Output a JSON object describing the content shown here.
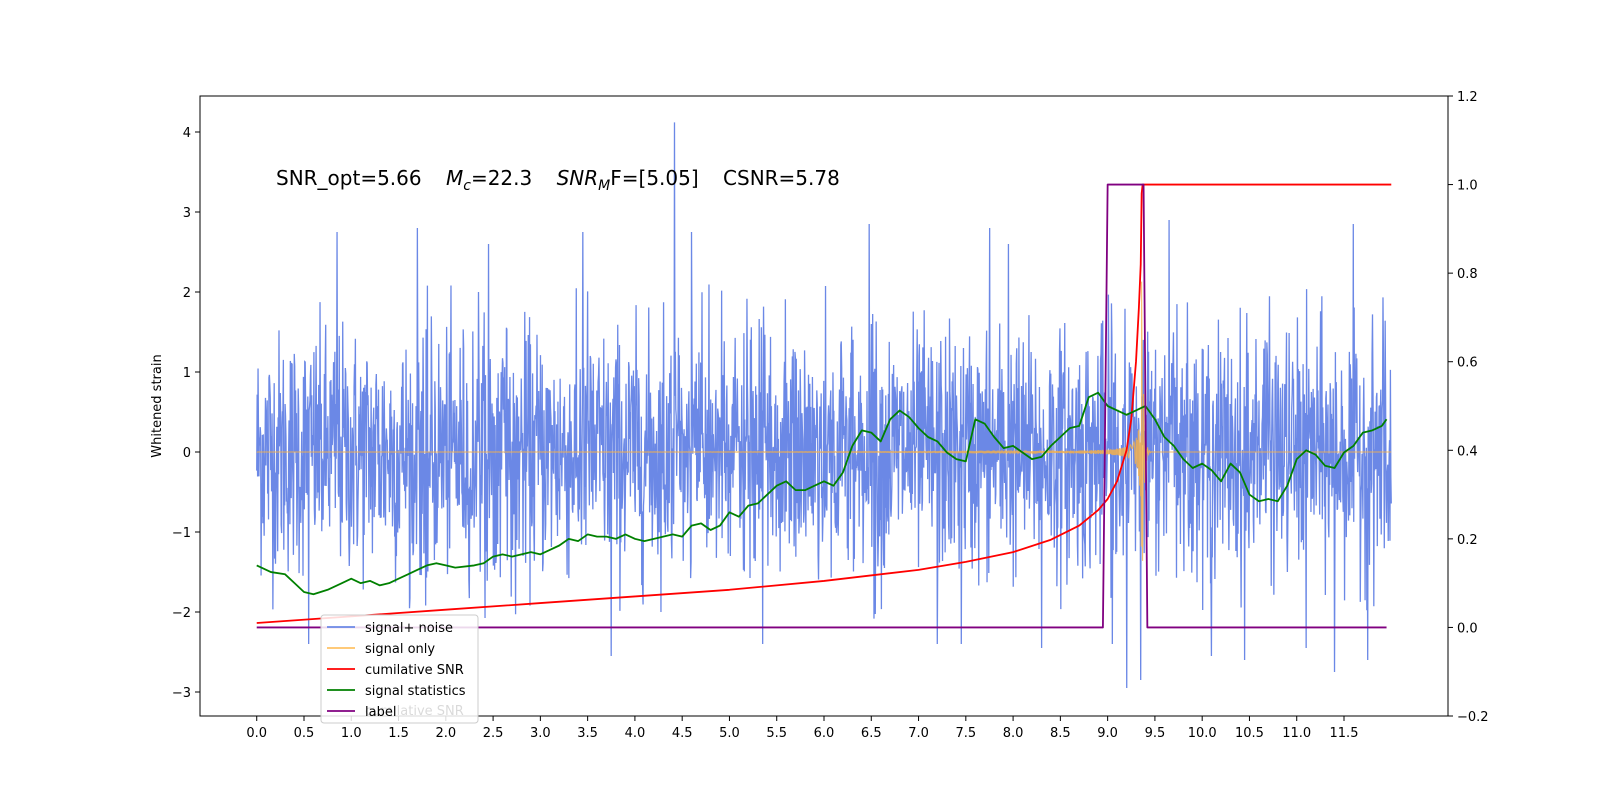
{
  "chart_data": {
    "type": "line",
    "ylabel": "Whitened strain",
    "annotation": {
      "parts": [
        "SNR_opt=5.66",
        "M",
        "c",
        "=22.3",
        "SNR",
        "M",
        "F=[5.05]",
        "CSNR=5.78"
      ]
    },
    "xlim": [
      -0.6,
      12.6
    ],
    "ylim_left": [
      -3.3,
      4.45
    ],
    "ylim_right": [
      -0.2,
      1.2
    ],
    "x_ticks": [
      0.0,
      0.5,
      1.0,
      1.5,
      2.0,
      2.5,
      3.0,
      3.5,
      4.0,
      4.5,
      5.0,
      5.5,
      6.0,
      6.5,
      7.0,
      7.5,
      8.0,
      8.5,
      9.0,
      9.5,
      10.0,
      10.5,
      11.0,
      11.5
    ],
    "x_tick_labels": [
      "0.0",
      "0.5",
      "1.0",
      "1.5",
      "2.0",
      "2.5",
      "3.0",
      "3.5",
      "4.0",
      "4.5",
      "5.0",
      "5.5",
      "6.0",
      "6.5",
      "7.0",
      "7.5",
      "8.0",
      "8.5",
      "9.0",
      "9.5",
      "10.0",
      "10.5",
      "11.0",
      "11.5"
    ],
    "y_left_ticks": [
      -3,
      -2,
      -1,
      0,
      1,
      2,
      3,
      4
    ],
    "y_left_tick_labels": [
      "−3",
      "−2",
      "−1",
      "0",
      "1",
      "2",
      "3",
      "4"
    ],
    "y_right_ticks": [
      -0.2,
      0.0,
      0.2,
      0.4,
      0.6,
      0.8,
      1.0,
      1.2
    ],
    "y_right_tick_labels": [
      "−0.2",
      "0.0",
      "0.2",
      "0.4",
      "0.6",
      "0.8",
      "1.0",
      "1.2"
    ],
    "legend": {
      "placement": "lower-left",
      "entries": [
        {
          "label": "signal+ noise",
          "color": "#6b88e6"
        },
        {
          "label": "signal only",
          "color": "#ffc266"
        },
        {
          "label": "cumilative SNR",
          "color": "#ff0000"
        },
        {
          "label": "signal statistics",
          "color": "#008000"
        },
        {
          "label": "label",
          "color": "#800080"
        }
      ],
      "ghost_label": "cumilative SNR"
    },
    "series": [
      {
        "name": "signal+ noise",
        "axis": "left",
        "color": "#6b88e6",
        "x_range": [
          0.0,
          12.0
        ],
        "noise_std": 0.75,
        "spikes": [
          [
            0.55,
            -2.4
          ],
          [
            0.85,
            2.75
          ],
          [
            1.7,
            2.8
          ],
          [
            2.45,
            2.6
          ],
          [
            3.45,
            2.75
          ],
          [
            3.75,
            3.0
          ],
          [
            3.75,
            -2.55
          ],
          [
            4.42,
            4.12
          ],
          [
            4.6,
            2.75
          ],
          [
            5.35,
            -2.4
          ],
          [
            6.48,
            2.85
          ],
          [
            7.2,
            -2.4
          ],
          [
            7.45,
            -2.4
          ],
          [
            7.75,
            2.8
          ],
          [
            7.95,
            2.6
          ],
          [
            8.3,
            -2.45
          ],
          [
            9.05,
            -2.4
          ],
          [
            9.2,
            -2.95
          ],
          [
            9.35,
            -2.85
          ],
          [
            9.65,
            2.9
          ],
          [
            10.1,
            -2.55
          ],
          [
            10.45,
            -2.6
          ],
          [
            11.1,
            -2.45
          ],
          [
            11.4,
            -2.75
          ],
          [
            11.6,
            2.85
          ],
          [
            11.75,
            -2.6
          ]
        ]
      },
      {
        "name": "signal only",
        "axis": "left",
        "color": "#f5b04a",
        "x_range": [
          0.0,
          12.0
        ],
        "chirp_end": 9.36,
        "peak": 2.5
      },
      {
        "name": "cumilative SNR",
        "axis": "right",
        "color": "#ff0000",
        "x": [
          0.0,
          1.0,
          2.0,
          3.0,
          4.0,
          5.0,
          6.0,
          7.0,
          7.5,
          8.0,
          8.4,
          8.7,
          8.9,
          9.0,
          9.1,
          9.2,
          9.25,
          9.3,
          9.33,
          9.35,
          9.36,
          9.37,
          9.38,
          12.0
        ],
        "y": [
          0.01,
          0.025,
          0.04,
          0.055,
          0.07,
          0.085,
          0.105,
          0.13,
          0.148,
          0.17,
          0.198,
          0.23,
          0.265,
          0.29,
          0.33,
          0.4,
          0.47,
          0.6,
          0.72,
          0.82,
          0.98,
          1.0,
          1.0,
          1.0
        ]
      },
      {
        "name": "signal statistics",
        "axis": "right",
        "color": "#008000",
        "x": [
          0.0,
          0.15,
          0.3,
          0.4,
          0.5,
          0.6,
          0.75,
          0.9,
          1.0,
          1.1,
          1.2,
          1.3,
          1.4,
          1.5,
          1.6,
          1.7,
          1.8,
          1.9,
          2.0,
          2.1,
          2.3,
          2.4,
          2.5,
          2.6,
          2.7,
          2.8,
          2.9,
          3.0,
          3.1,
          3.2,
          3.3,
          3.4,
          3.5,
          3.6,
          3.7,
          3.8,
          3.9,
          4.0,
          4.1,
          4.2,
          4.3,
          4.4,
          4.5,
          4.6,
          4.7,
          4.8,
          4.9,
          5.0,
          5.1,
          5.2,
          5.3,
          5.4,
          5.5,
          5.6,
          5.7,
          5.8,
          5.9,
          6.0,
          6.1,
          6.2,
          6.3,
          6.4,
          6.5,
          6.6,
          6.7,
          6.8,
          6.9,
          7.0,
          7.1,
          7.2,
          7.3,
          7.4,
          7.5,
          7.6,
          7.7,
          7.8,
          7.9,
          8.0,
          8.1,
          8.2,
          8.3,
          8.4,
          8.5,
          8.6,
          8.7,
          8.8,
          8.9,
          9.0,
          9.1,
          9.2,
          9.3,
          9.4,
          9.5,
          9.6,
          9.7,
          9.8,
          9.9,
          10.0,
          10.1,
          10.2,
          10.3,
          10.4,
          10.5,
          10.6,
          10.7,
          10.8,
          10.9,
          11.0,
          11.1,
          11.2,
          11.3,
          11.4,
          11.5,
          11.6,
          11.7,
          11.8,
          11.9,
          11.95
        ],
        "y": [
          0.14,
          0.125,
          0.12,
          0.1,
          0.08,
          0.075,
          0.085,
          0.1,
          0.11,
          0.1,
          0.105,
          0.095,
          0.1,
          0.11,
          0.12,
          0.13,
          0.14,
          0.145,
          0.14,
          0.135,
          0.14,
          0.145,
          0.16,
          0.165,
          0.16,
          0.165,
          0.17,
          0.165,
          0.175,
          0.185,
          0.2,
          0.195,
          0.21,
          0.205,
          0.205,
          0.2,
          0.21,
          0.2,
          0.195,
          0.2,
          0.205,
          0.21,
          0.205,
          0.23,
          0.235,
          0.22,
          0.23,
          0.26,
          0.25,
          0.275,
          0.28,
          0.3,
          0.32,
          0.33,
          0.31,
          0.31,
          0.32,
          0.33,
          0.32,
          0.35,
          0.41,
          0.445,
          0.44,
          0.42,
          0.47,
          0.49,
          0.475,
          0.45,
          0.43,
          0.42,
          0.395,
          0.38,
          0.375,
          0.47,
          0.46,
          0.43,
          0.405,
          0.41,
          0.395,
          0.38,
          0.385,
          0.41,
          0.43,
          0.45,
          0.455,
          0.52,
          0.53,
          0.5,
          0.49,
          0.48,
          0.49,
          0.5,
          0.47,
          0.43,
          0.41,
          0.38,
          0.36,
          0.37,
          0.355,
          0.33,
          0.37,
          0.35,
          0.3,
          0.285,
          0.29,
          0.285,
          0.32,
          0.38,
          0.4,
          0.39,
          0.365,
          0.36,
          0.395,
          0.41,
          0.44,
          0.445,
          0.455,
          0.47
        ]
      },
      {
        "name": "label",
        "axis": "right",
        "color": "#800080",
        "x": [
          0.0,
          8.95,
          9.0,
          9.38,
          9.42,
          11.95
        ],
        "y": [
          0.0,
          0.0,
          1.0,
          1.0,
          0.0,
          0.0
        ]
      }
    ]
  }
}
